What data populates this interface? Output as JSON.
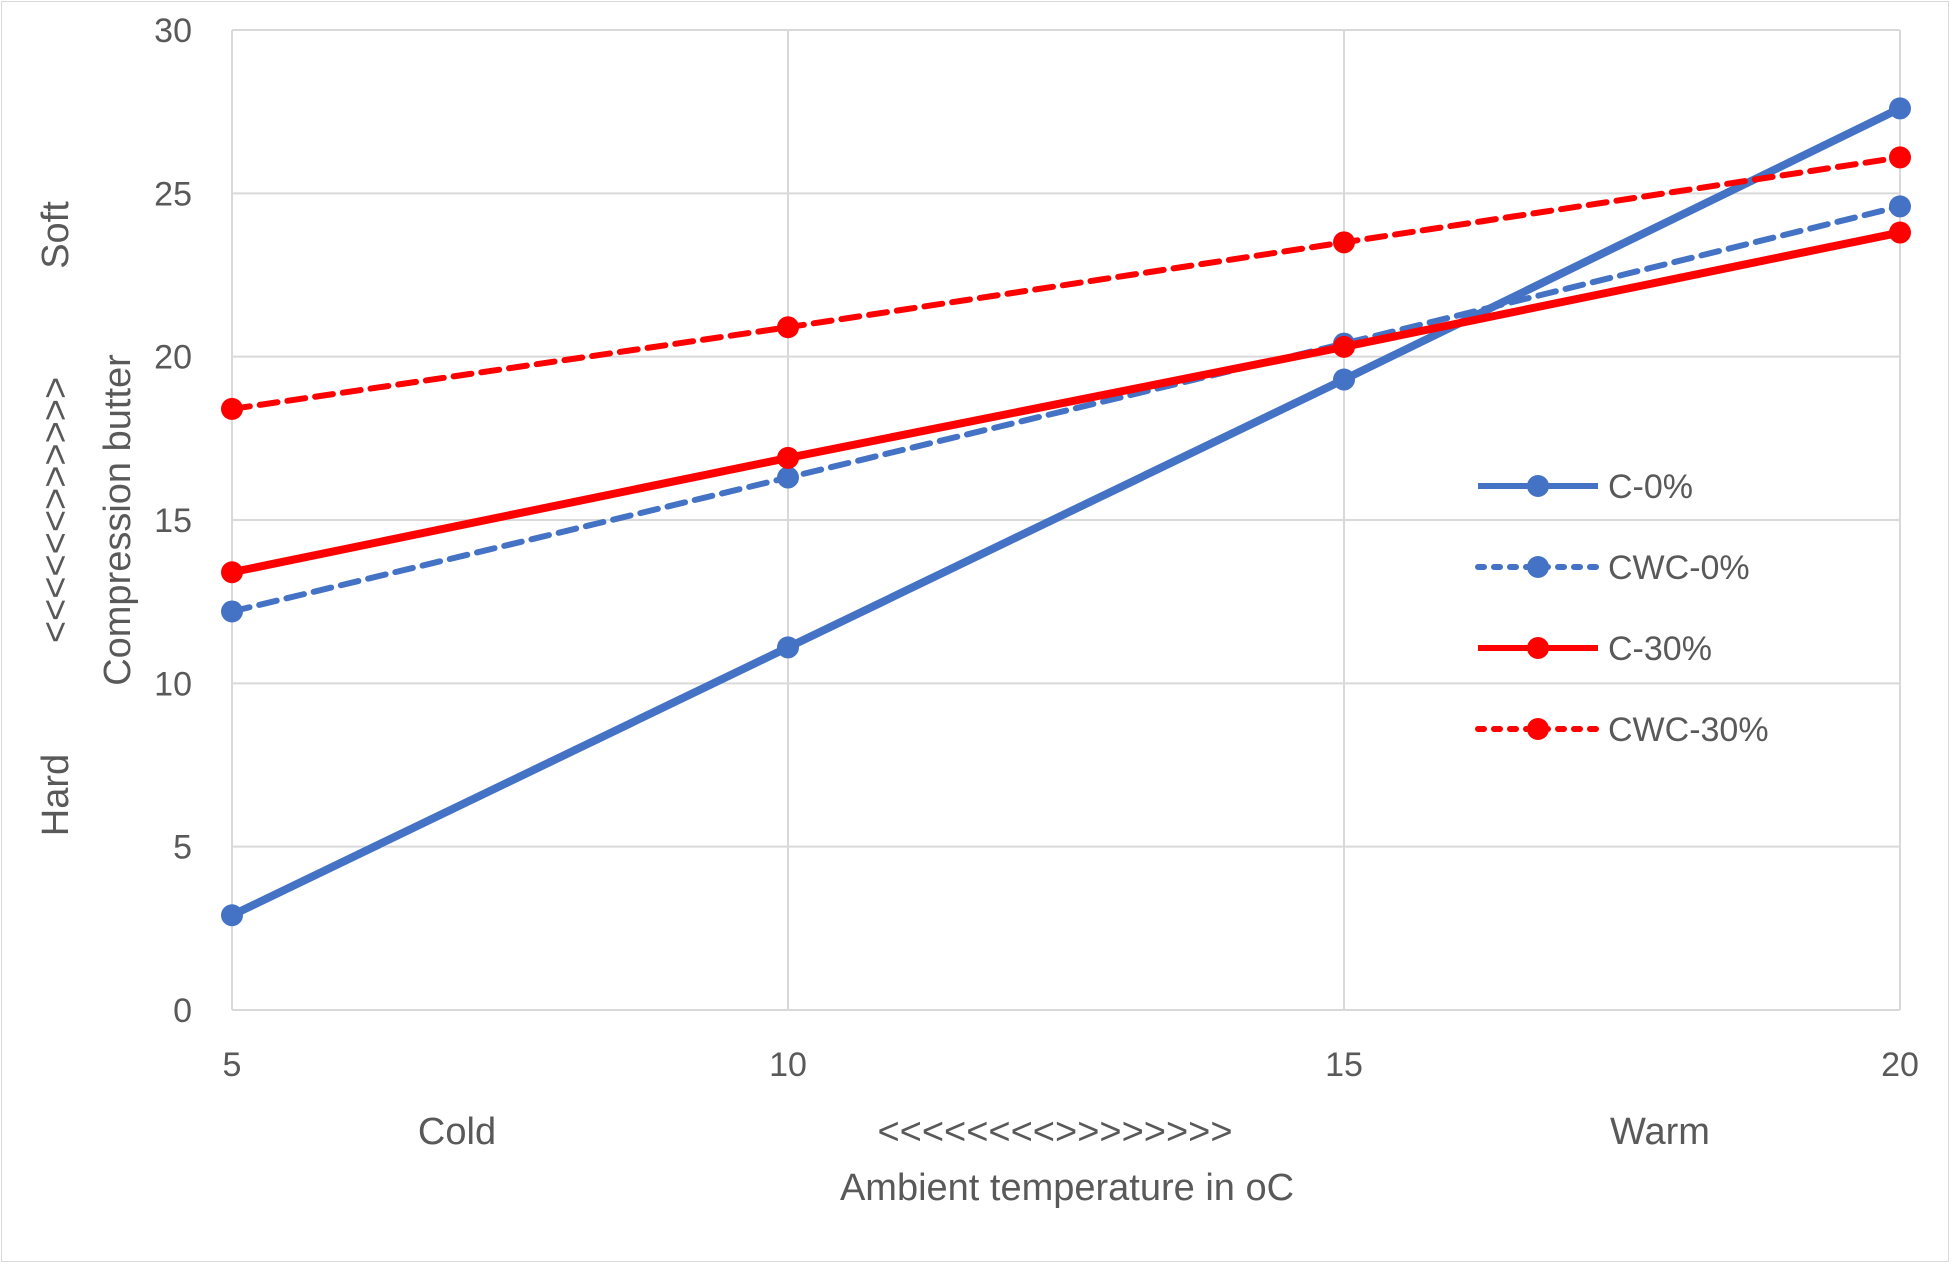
{
  "chart_data": {
    "type": "line",
    "title": "",
    "x": [
      5,
      10,
      15,
      20
    ],
    "x_ticks": [
      "5",
      "10",
      "15",
      "20"
    ],
    "y_ticks": [
      "0",
      "5",
      "10",
      "15",
      "20",
      "25",
      "30"
    ],
    "xlim": [
      5,
      20
    ],
    "ylim": [
      0,
      30
    ],
    "grid": true,
    "xlabel": "Ambient temperature in oC",
    "x_annotations": {
      "left": "Cold",
      "middle": "<<<<<<<<>>>>>>>>",
      "right": "Warm"
    },
    "ylabel": "Compression butter",
    "y_annotations": {
      "top": "Soft",
      "middle": "<<<<<<>>>>>>",
      "bottom": "Hard"
    },
    "legend_position": "right",
    "series": [
      {
        "name": "C-0%",
        "color": "#4472C4",
        "dash": "solid",
        "values": [
          2.9,
          11.1,
          19.3,
          27.6
        ]
      },
      {
        "name": "CWC-0%",
        "color": "#4472C4",
        "dash": "dashed",
        "values": [
          12.2,
          16.3,
          20.4,
          24.6
        ]
      },
      {
        "name": "C-30%",
        "color": "#FF0000",
        "dash": "solid",
        "values": [
          13.4,
          16.9,
          20.3,
          23.8
        ]
      },
      {
        "name": "CWC-30%",
        "color": "#FF0000",
        "dash": "dashed",
        "values": [
          18.4,
          20.9,
          23.5,
          26.1
        ]
      }
    ]
  }
}
